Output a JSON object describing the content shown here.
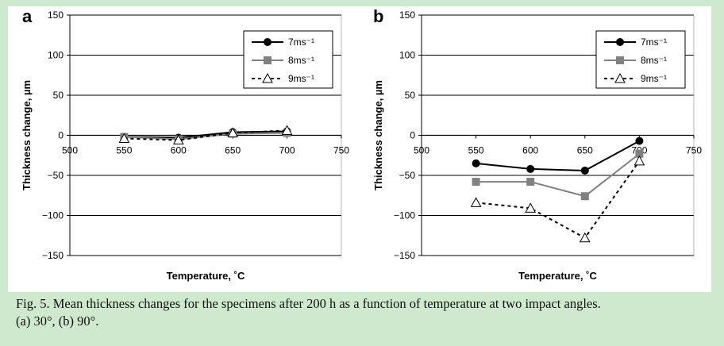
{
  "colors": {
    "page_background": "#cfe9cf",
    "panel_background": "#ffffff",
    "series": [
      "#000000",
      "#808080",
      "#000000"
    ]
  },
  "caption": {
    "line1": "Fig. 5.  Mean thickness changes for the specimens after 200 h as a function of temperature at two impact angles.",
    "line2": "(a) 30°, (b) 90°."
  },
  "chart_data": [
    {
      "panel_label": "a",
      "type": "line",
      "x": [
        550,
        600,
        650,
        700
      ],
      "xlim": [
        500,
        750
      ],
      "x_ticks": [
        "500",
        "550",
        "600",
        "650",
        "700",
        "750"
      ],
      "ylim": [
        -150,
        150
      ],
      "y_ticks": [
        "150",
        "100",
        "50",
        "0",
        "-50",
        "-100",
        "-150"
      ],
      "xlabel": "Temperature, ˚C",
      "ylabel": "Thickness change, µm",
      "grid": "horizontal",
      "legend_position": "top-right",
      "series": [
        {
          "name": "7ms⁻¹",
          "marker": "circle",
          "line": "solid",
          "values": [
            -2,
            -3,
            4,
            5
          ]
        },
        {
          "name": "8ms⁻¹",
          "marker": "square",
          "line": "solid",
          "values": [
            -2,
            -5,
            2,
            3
          ]
        },
        {
          "name": "9ms⁻¹",
          "marker": "triangle",
          "line": "dashed",
          "values": [
            -4,
            -6,
            3,
            6
          ]
        }
      ]
    },
    {
      "panel_label": "b",
      "type": "line",
      "x": [
        550,
        600,
        650,
        700
      ],
      "xlim": [
        500,
        750
      ],
      "x_ticks": [
        "500",
        "550",
        "600",
        "650",
        "700",
        "750"
      ],
      "ylim": [
        -150,
        150
      ],
      "y_ticks": [
        "150",
        "100",
        "50",
        "0",
        "-50",
        "-100",
        "-150"
      ],
      "xlabel": "Temperature, ˚C",
      "ylabel": "Thickness change, µm",
      "grid": "horizontal",
      "legend_position": "top-right",
      "series": [
        {
          "name": "7ms⁻¹",
          "marker": "circle",
          "line": "solid",
          "values": [
            -35,
            -42,
            -44,
            -7
          ]
        },
        {
          "name": "8ms⁻¹",
          "marker": "square",
          "line": "solid",
          "values": [
            -58,
            -58,
            -76,
            -23
          ]
        },
        {
          "name": "9ms⁻¹",
          "marker": "triangle",
          "line": "dashed",
          "values": [
            -84,
            -91,
            -128,
            -32
          ]
        }
      ]
    }
  ]
}
